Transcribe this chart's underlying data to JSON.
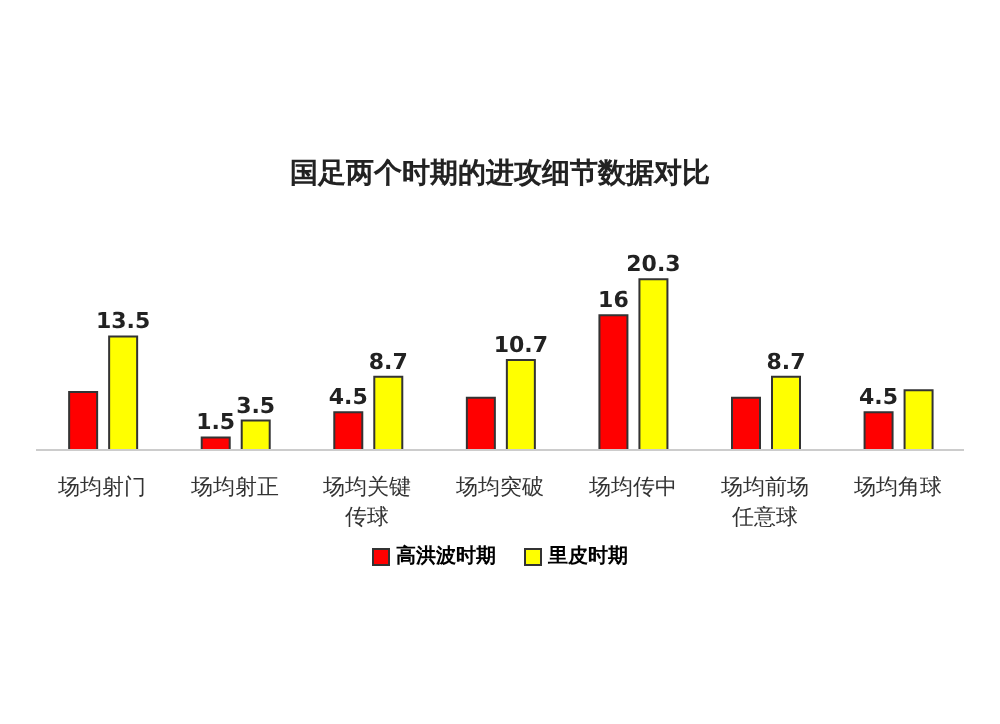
{
  "chart_data": {
    "type": "bar",
    "title": "国足两个时期的进攻细节数据对比",
    "categories": [
      "场均射门",
      "场均射正",
      "场均关键传球",
      "场均突破",
      "场均传中",
      "场均前场任意球",
      "场均角球"
    ],
    "series": [
      {
        "name": "高洪波时期",
        "color": "#ff0000",
        "values": [
          6.9,
          1.5,
          4.5,
          6.2,
          16,
          6.2,
          4.5
        ],
        "value_labels": [
          null,
          "1.5",
          "4.5",
          null,
          "16",
          null,
          "4.5"
        ]
      },
      {
        "name": "里皮时期",
        "color": "#ffff00",
        "values": [
          13.5,
          3.5,
          8.7,
          10.7,
          20.3,
          8.7,
          7.1
        ],
        "value_labels": [
          "13.5",
          "3.5",
          "8.7",
          "10.7",
          "20.3",
          "8.7",
          null
        ]
      }
    ],
    "tick_labels": "x",
    "legend": "bottom"
  }
}
